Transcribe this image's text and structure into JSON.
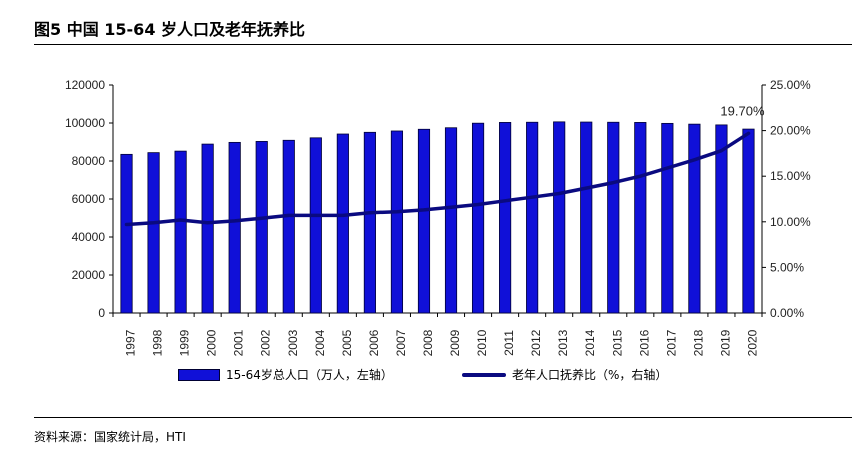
{
  "figure": {
    "title": "图5  中国 15-64 岁人口及老年抚养比",
    "source": "资料来源：国家统计局，HTI"
  },
  "colors": {
    "bar": "#1010d8",
    "bar_border": "#000033",
    "line": "#0a0a80",
    "axis": "#000000"
  },
  "chart_data": {
    "type": "bar",
    "categories": [
      "1997",
      "1998",
      "1999",
      "2000",
      "2001",
      "2002",
      "2003",
      "2004",
      "2005",
      "2006",
      "2007",
      "2008",
      "2009",
      "2010",
      "2011",
      "2012",
      "2013",
      "2014",
      "2015",
      "2016",
      "2017",
      "2018",
      "2019",
      "2020"
    ],
    "series": [
      {
        "name": "15-64岁总人口（万人，左轴）",
        "type": "bar",
        "axis": "left",
        "values": [
          83500,
          84400,
          85200,
          88900,
          89800,
          90300,
          90900,
          92200,
          94200,
          95100,
          95800,
          96700,
          97500,
          99900,
          100300,
          100400,
          100600,
          100500,
          100400,
          100300,
          99800,
          99400,
          99000,
          96800
        ]
      },
      {
        "name": "老年人口抚养比（%，右轴）",
        "type": "line",
        "axis": "right",
        "values": [
          9.7,
          9.9,
          10.2,
          9.9,
          10.1,
          10.4,
          10.7,
          10.7,
          10.7,
          11.0,
          11.1,
          11.3,
          11.6,
          11.9,
          12.3,
          12.7,
          13.1,
          13.7,
          14.3,
          15.0,
          15.9,
          16.8,
          17.8,
          19.7
        ]
      }
    ],
    "annotation": "19.70%",
    "left_axis": {
      "min": 0,
      "max": 120000,
      "ticks": [
        "0",
        "20000",
        "40000",
        "60000",
        "80000",
        "100000",
        "120000"
      ]
    },
    "right_axis": {
      "min": 0,
      "max": 25,
      "ticks": [
        "0.00%",
        "5.00%",
        "10.00%",
        "15.00%",
        "20.00%",
        "25.00%"
      ]
    },
    "xlabel": "",
    "ylabel": "",
    "legend": [
      {
        "label": "15-64岁总人口（万人，左轴）",
        "kind": "bar"
      },
      {
        "label": "老年人口抚养比（%，右轴）",
        "kind": "line"
      }
    ]
  }
}
